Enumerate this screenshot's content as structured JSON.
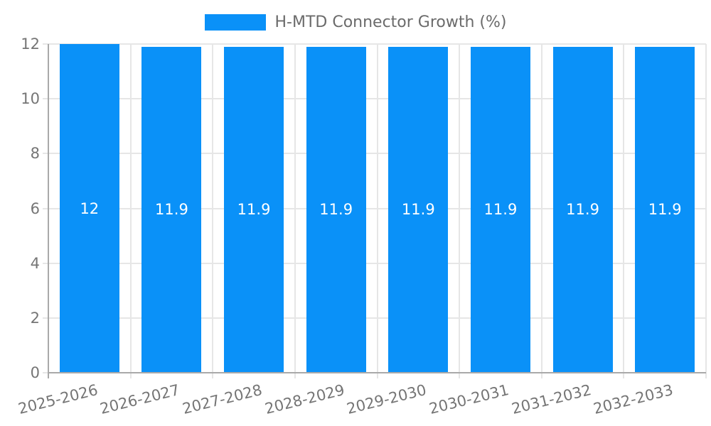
{
  "chart_data": {
    "type": "bar",
    "categories": [
      "2025-2026",
      "2026-2027",
      "2027-2028",
      "2028-2029",
      "2029-2030",
      "2030-2031",
      "2031-2032",
      "2032-2033"
    ],
    "series": [
      {
        "name": "H-MTD Connector Growth (%)",
        "values": [
          12,
          11.9,
          11.9,
          11.9,
          11.9,
          11.9,
          11.9,
          11.9
        ],
        "color": "#0a91f8"
      }
    ],
    "value_labels": [
      "12",
      "11.9",
      "11.9",
      "11.9",
      "11.9",
      "11.9",
      "11.9",
      "11.9"
    ],
    "title": "H-MTD Connector Growth (%)",
    "xlabel": "",
    "ylabel": "",
    "ylim": [
      0,
      12
    ],
    "yticks": [
      0,
      2,
      4,
      6,
      8,
      10,
      12
    ],
    "grid": true,
    "legend_position": "top",
    "value_labels_inside_bars": true,
    "x_label_rotation_deg": -14,
    "colors": {
      "bar": "#0a91f8",
      "value_label_text": "#ffffff",
      "axis_text": "#757575",
      "legend_text": "#6b6b6b",
      "gridline": "#e6e6e6",
      "axis_line": "#a9a9a9",
      "background": "#ffffff"
    }
  }
}
